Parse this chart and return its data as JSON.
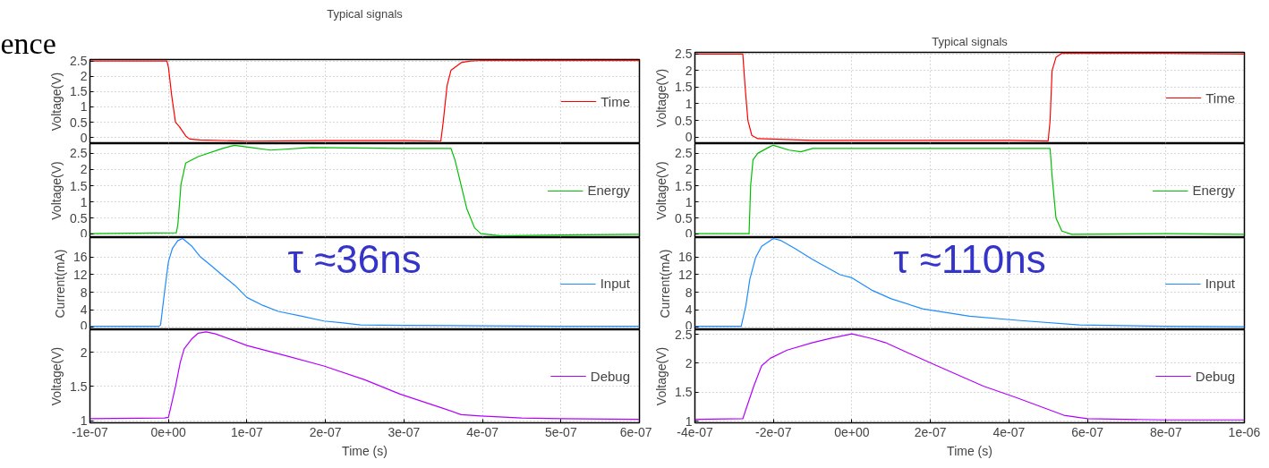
{
  "chart_data": [
    {
      "type": "line",
      "title": "Typical signals",
      "ylabel": "Voltage(V)",
      "annotations": [
        "ence"
      ],
      "legend": "right",
      "grid": true,
      "tick_labels": "y",
      "xlim": [
        -1e-07,
        6e-07
      ],
      "xticks": [
        {
          "value": -1e-07,
          "label": null
        },
        {
          "value": 0,
          "label": null
        },
        {
          "value": 1e-07,
          "label": null
        },
        {
          "value": 2e-07,
          "label": null
        },
        {
          "value": 3e-07,
          "label": null
        },
        {
          "value": 4e-07,
          "label": null
        },
        {
          "value": 5e-07,
          "label": null
        },
        {
          "value": 6e-07,
          "label": null
        }
      ],
      "ylim": [
        -0.2,
        2.55
      ],
      "yticks": [
        0,
        0.5,
        1,
        1.5,
        2,
        2.5
      ],
      "series": [
        {
          "name": "Time",
          "color": "#ff0000",
          "x": [
            -1e-07,
            -2e-09,
            0,
            4e-09,
            9e-09,
            1.4e-08,
            2.2e-08,
            2.7e-08,
            4e-08,
            1e-07,
            2e-07,
            3e-07,
            3.47e-07,
            3.5e-07,
            3.55e-07,
            3.6e-07,
            3.73e-07,
            3.85e-07,
            4e-07,
            5e-07,
            6e-07
          ],
          "values": [
            2.5,
            2.5,
            2.3,
            1.4,
            0.5,
            0.35,
            0.05,
            -0.05,
            -0.08,
            -0.12,
            -0.1,
            -0.1,
            -0.12,
            0.5,
            1.7,
            2.2,
            2.45,
            2.5,
            2.52,
            2.52,
            2.52
          ]
        }
      ]
    },
    {
      "type": "line",
      "ylabel": "Voltage(V)",
      "legend": "right",
      "grid": true,
      "tick_labels": "y",
      "xlim": [
        -1e-07,
        6e-07
      ],
      "xticks": [
        {
          "value": -1e-07,
          "label": null
        },
        {
          "value": 0,
          "label": null
        },
        {
          "value": 1e-07,
          "label": null
        },
        {
          "value": 2e-07,
          "label": null
        },
        {
          "value": 3e-07,
          "label": null
        },
        {
          "value": 4e-07,
          "label": null
        },
        {
          "value": 5e-07,
          "label": null
        },
        {
          "value": 6e-07,
          "label": null
        }
      ],
      "ylim": [
        -0.1,
        2.8
      ],
      "yticks": [
        0,
        0.5,
        1,
        1.5,
        2,
        2.5
      ],
      "series": [
        {
          "name": "Energy",
          "color": "#00c000",
          "x": [
            -1e-07,
            1e-08,
            1.2e-08,
            1.6e-08,
            2.2e-08,
            3.8e-08,
            6.9e-08,
            8.4e-08,
            9.9e-08,
            1.3e-07,
            1.82e-07,
            2.95e-07,
            3.6e-07,
            3.65e-07,
            3.73e-07,
            3.8e-07,
            3.9e-07,
            3.98e-07,
            4.24e-07,
            5e-07,
            6e-07
          ],
          "values": [
            0.02,
            0.05,
            0.3,
            1.55,
            2.2,
            2.4,
            2.65,
            2.75,
            2.7,
            2.6,
            2.68,
            2.65,
            2.65,
            2.3,
            1.5,
            0.8,
            0.2,
            0.02,
            -0.05,
            -0.02,
            0
          ]
        }
      ]
    },
    {
      "type": "line",
      "ylabel": "Current(mA)",
      "annotations": [
        "τ ≈36ns"
      ],
      "legend": "right",
      "grid": true,
      "tick_labels": "y",
      "xlim": [
        -1e-07,
        6e-07
      ],
      "xticks": [
        {
          "value": -1e-07,
          "label": null
        },
        {
          "value": 0,
          "label": null
        },
        {
          "value": 1e-07,
          "label": null
        },
        {
          "value": 2e-07,
          "label": null
        },
        {
          "value": 3e-07,
          "label": null
        },
        {
          "value": 4e-07,
          "label": null
        },
        {
          "value": 5e-07,
          "label": null
        },
        {
          "value": 6e-07,
          "label": null
        }
      ],
      "ylim": [
        -0.6,
        20.5
      ],
      "yticks": [
        0,
        4,
        8,
        12,
        16
      ],
      "series": [
        {
          "name": "Input",
          "color": "#1e8cff",
          "x": [
            -1e-07,
            -1.2e-08,
            -1e-08,
            -5e-09,
            0,
            5e-09,
            1.2e-08,
            1.8e-08,
            3e-08,
            4e-08,
            5.5e-08,
            7e-08,
            8.5e-08,
            1e-07,
            1.2e-07,
            1.4e-07,
            1.7e-07,
            1.98e-07,
            2.2e-07,
            2.45e-07,
            3e-07,
            4e-07,
            5e-07,
            6e-07
          ],
          "values": [
            0.2,
            0.2,
            0.5,
            8,
            15,
            18,
            19.8,
            20.3,
            18.5,
            16.2,
            14,
            11.7,
            9.5,
            6.8,
            5,
            3.6,
            2.5,
            1.4,
            1.0,
            0.5,
            0.4,
            0.3,
            0.2,
            0.2
          ]
        }
      ]
    },
    {
      "type": "line",
      "xlabel": "Time (s)",
      "ylabel": "Voltage(V)",
      "legend": "right",
      "grid": true,
      "xlim": [
        -1e-07,
        6e-07
      ],
      "xticks": [
        {
          "value": -1e-07,
          "label": "-1e-07"
        },
        {
          "value": 0,
          "label": "0e+00"
        },
        {
          "value": 1e-07,
          "label": "1e-07"
        },
        {
          "value": 2e-07,
          "label": "2e-07"
        },
        {
          "value": 3e-07,
          "label": "3e-07"
        },
        {
          "value": 4e-07,
          "label": "4e-07"
        },
        {
          "value": 5e-07,
          "label": "5e-07"
        },
        {
          "value": 6e-07,
          "label": "6e-07"
        }
      ],
      "ylim": [
        0.97,
        2.33
      ],
      "yticks": [
        1,
        1.5,
        2
      ],
      "series": [
        {
          "name": "Debug",
          "color": "#b400ff",
          "x": [
            -1e-07,
            -5e-09,
            0,
            5e-09,
            9e-09,
            1.5e-08,
            2e-08,
            3e-08,
            3.8e-08,
            4.8e-08,
            6e-08,
            1e-07,
            1.5e-07,
            1.98e-07,
            2.5e-07,
            2.95e-07,
            3.5e-07,
            3.73e-07,
            3.98e-07,
            4.5e-07,
            5e-07,
            6e-07
          ],
          "values": [
            1.03,
            1.04,
            1.05,
            1.3,
            1.5,
            1.85,
            2.05,
            2.2,
            2.28,
            2.3,
            2.27,
            2.1,
            1.95,
            1.8,
            1.6,
            1.39,
            1.18,
            1.09,
            1.07,
            1.04,
            1.03,
            1.02
          ]
        }
      ]
    },
    {
      "type": "line",
      "title": "Typical signals",
      "ylabel": "Voltage(V)",
      "legend": "right",
      "grid": true,
      "tick_labels": "y",
      "xlim": [
        -4e-07,
        1e-06
      ],
      "xticks": [
        {
          "value": -4e-07,
          "label": null
        },
        {
          "value": -2e-07,
          "label": null
        },
        {
          "value": 0,
          "label": null
        },
        {
          "value": 2e-07,
          "label": null
        },
        {
          "value": 4e-07,
          "label": null
        },
        {
          "value": 6e-07,
          "label": null
        },
        {
          "value": 8e-07,
          "label": null
        },
        {
          "value": 1e-06,
          "label": null
        }
      ],
      "ylim": [
        -0.2,
        2.55
      ],
      "yticks": [
        0,
        0.5,
        1,
        1.5,
        2,
        2.5
      ],
      "series": [
        {
          "name": "Time",
          "color": "#ff0000",
          "x": [
            -4e-07,
            -2.78e-07,
            -2.72e-07,
            -2.65e-07,
            -2.55e-07,
            -2.4e-07,
            -1e-07,
            2e-07,
            4e-07,
            5e-07,
            5.05e-07,
            5.1e-07,
            5.2e-07,
            5.35e-07,
            8e-07,
            1e-06
          ],
          "values": [
            2.5,
            2.5,
            1.5,
            0.5,
            0.05,
            -0.05,
            -0.1,
            -0.1,
            -0.1,
            -0.12,
            0.5,
            2.0,
            2.4,
            2.52,
            2.52,
            2.5
          ]
        }
      ]
    },
    {
      "type": "line",
      "ylabel": "Voltage(V)",
      "legend": "right",
      "grid": true,
      "tick_labels": "y",
      "xlim": [
        -4e-07,
        1e-06
      ],
      "xticks": [
        {
          "value": -4e-07,
          "label": null
        },
        {
          "value": -2e-07,
          "label": null
        },
        {
          "value": 0,
          "label": null
        },
        {
          "value": 2e-07,
          "label": null
        },
        {
          "value": 4e-07,
          "label": null
        },
        {
          "value": 6e-07,
          "label": null
        },
        {
          "value": 8e-07,
          "label": null
        },
        {
          "value": 1e-06,
          "label": null
        }
      ],
      "ylim": [
        -0.1,
        2.8
      ],
      "yticks": [
        0,
        0.5,
        1,
        1.5,
        2,
        2.5
      ],
      "series": [
        {
          "name": "Energy",
          "color": "#00c000",
          "x": [
            -4e-07,
            -2.62e-07,
            -2.58e-07,
            -2.52e-07,
            -2.4e-07,
            -2.1e-07,
            -2e-07,
            -1.6e-07,
            -1.3e-07,
            -1e-07,
            2e-07,
            5.05e-07,
            5.1e-07,
            5.2e-07,
            5.35e-07,
            5.6e-07,
            8e-07,
            1e-06
          ],
          "values": [
            0.02,
            0.02,
            1.5,
            2.3,
            2.5,
            2.7,
            2.75,
            2.6,
            2.55,
            2.65,
            2.65,
            2.65,
            1.8,
            0.5,
            0.1,
            0,
            0.02,
            0
          ]
        }
      ]
    },
    {
      "type": "line",
      "ylabel": "Current(mA)",
      "annotations": [
        "τ ≈110ns"
      ],
      "legend": "right",
      "grid": true,
      "tick_labels": "y",
      "xlim": [
        -4e-07,
        1e-06
      ],
      "xticks": [
        {
          "value": -4e-07,
          "label": null
        },
        {
          "value": -2e-07,
          "label": null
        },
        {
          "value": 0,
          "label": null
        },
        {
          "value": 2e-07,
          "label": null
        },
        {
          "value": 4e-07,
          "label": null
        },
        {
          "value": 6e-07,
          "label": null
        },
        {
          "value": 8e-07,
          "label": null
        },
        {
          "value": 1e-06,
          "label": null
        }
      ],
      "ylim": [
        -0.6,
        20.5
      ],
      "yticks": [
        0,
        4,
        8,
        12,
        16
      ],
      "series": [
        {
          "name": "Input",
          "color": "#1e8cff",
          "x": [
            -4e-07,
            -2.82e-07,
            -2.7e-07,
            -2.6e-07,
            -2.45e-07,
            -2.3e-07,
            -2e-07,
            -1.8e-07,
            -1.45e-07,
            -1e-07,
            -3e-08,
            0,
            5e-08,
            1e-07,
            1.8e-07,
            3e-07,
            4.3e-07,
            5.8e-07,
            8e-07,
            1e-06
          ],
          "values": [
            0.2,
            0.2,
            5,
            11,
            16,
            18.5,
            20.3,
            19.8,
            18,
            15.5,
            12,
            11.3,
            8.5,
            6.5,
            4.2,
            2.5,
            1.5,
            0.5,
            0.2,
            0.1
          ]
        }
      ]
    },
    {
      "type": "line",
      "xlabel": "Time (s)",
      "ylabel": "Voltage(V)",
      "legend": "right",
      "grid": true,
      "xlim": [
        -4e-07,
        1e-06
      ],
      "xticks": [
        {
          "value": -4e-07,
          "label": "-4e-07"
        },
        {
          "value": -2e-07,
          "label": "-2e-07"
        },
        {
          "value": 0,
          "label": "0e+00"
        },
        {
          "value": 2e-07,
          "label": "2e-07"
        },
        {
          "value": 4e-07,
          "label": "4e-07"
        },
        {
          "value": 6e-07,
          "label": "6e-07"
        },
        {
          "value": 8e-07,
          "label": "8e-07"
        },
        {
          "value": 1e-06,
          "label": "1e-06"
        }
      ],
      "ylim": [
        0.97,
        2.57
      ],
      "yticks": [
        1,
        1.5,
        2,
        2.5
      ],
      "series": [
        {
          "name": "Debug",
          "color": "#b400ff",
          "x": [
            -4e-07,
            -2.78e-07,
            -2.65e-07,
            -2.5e-07,
            -2.3e-07,
            -2.08e-07,
            -1.65e-07,
            -1e-07,
            -5e-08,
            0,
            5e-08,
            8.5e-08,
            2e-07,
            3.35e-07,
            4.2e-07,
            5e-07,
            5.4e-07,
            6e-07,
            8e-07,
            1e-06
          ],
          "values": [
            1.03,
            1.04,
            1.3,
            1.6,
            1.95,
            2.08,
            2.22,
            2.35,
            2.43,
            2.5,
            2.42,
            2.35,
            2.0,
            1.6,
            1.4,
            1.2,
            1.1,
            1.04,
            1.02,
            1.02
          ]
        }
      ]
    }
  ]
}
